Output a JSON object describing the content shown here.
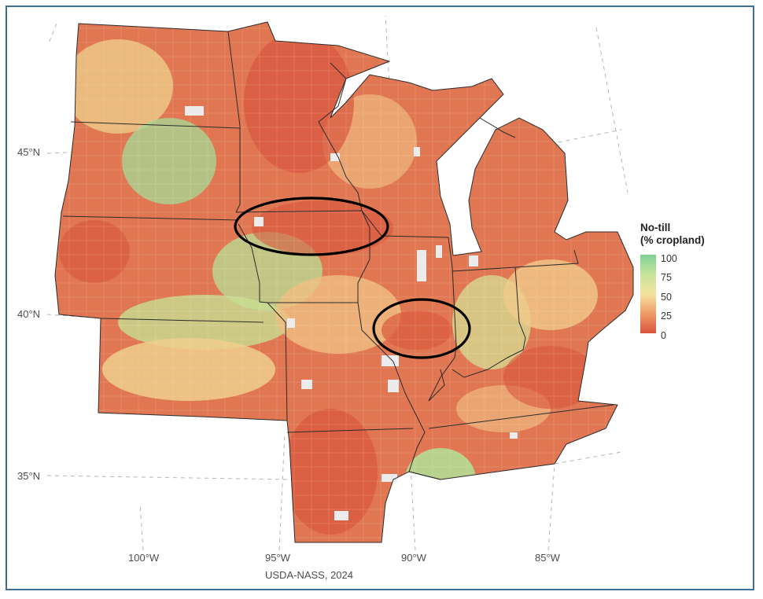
{
  "legend": {
    "title_line1": "No-till",
    "title_line2": "(% cropland)",
    "ticks": [
      "100",
      "75",
      "50",
      "25",
      "0"
    ],
    "colors": [
      "#7ed196",
      "#c6e59a",
      "#f5e3a0",
      "#f09b66",
      "#d9533c"
    ]
  },
  "axes": {
    "lat_labels": [
      "45°N",
      "40°N",
      "35°N"
    ],
    "lon_labels": [
      "100°W",
      "95°W",
      "90°W",
      "85°W"
    ]
  },
  "caption": "USDA-NASS, 2024",
  "annotations": [
    "ellipse-southern-minnesota-northern-iowa",
    "ellipse-central-illinois"
  ]
}
